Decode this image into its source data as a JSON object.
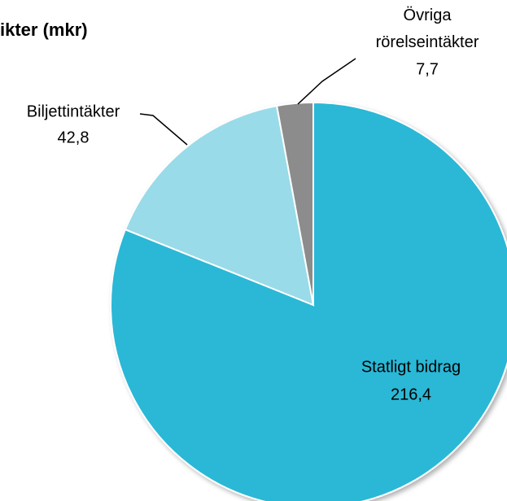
{
  "chart_data": {
    "type": "pie",
    "title": "ikter (mkr)",
    "categories": [
      "Statligt bidrag",
      "Biljettintäkter",
      "Övriga rörelseintäkter"
    ],
    "values": [
      216.4,
      42.8,
      7.7
    ],
    "value_labels": [
      "216,4",
      "42,8",
      "7,7"
    ],
    "colors": [
      "#2bb8d6",
      "#99dbe8",
      "#8c8c8c"
    ]
  }
}
